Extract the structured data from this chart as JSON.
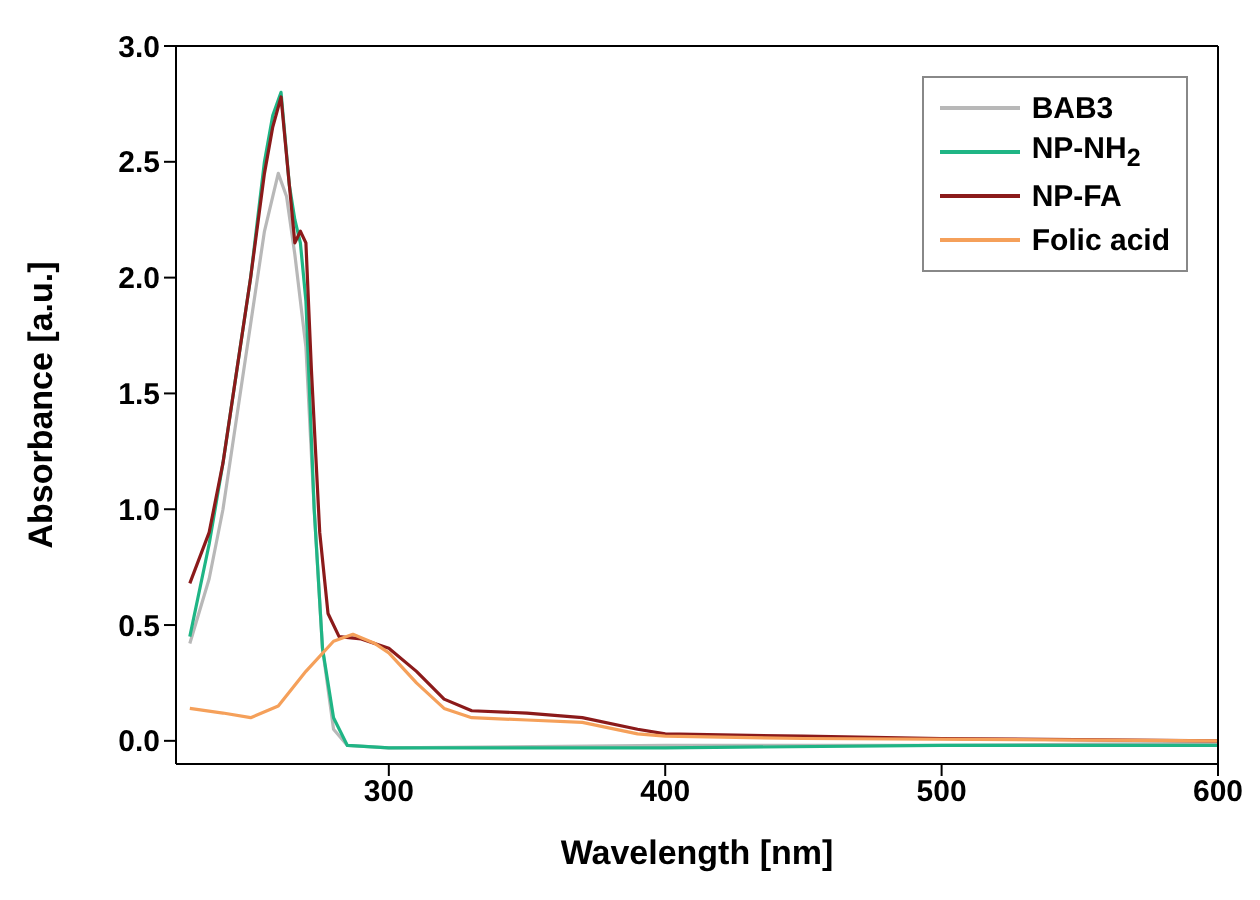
{
  "chart_data": {
    "type": "line",
    "xlabel": "Wavelength [nm]",
    "ylabel": "Absorbance [a.u.]",
    "xlim": [
      223,
      600
    ],
    "xticks": [
      300,
      400,
      500,
      600
    ],
    "ylim": [
      -0.1,
      3.0
    ],
    "yticks": [
      {
        "value": 0,
        "label": "0.0"
      },
      {
        "value": 0.5,
        "label": "0.5"
      },
      {
        "value": 1,
        "label": "1.0"
      },
      {
        "value": 1.5,
        "label": "1.5"
      },
      {
        "value": 2,
        "label": "2.0"
      },
      {
        "value": 2.5,
        "label": "2.5"
      },
      {
        "value": 3,
        "label": "3.0"
      }
    ],
    "legend": "top right",
    "marker": "none",
    "line_style": "solid",
    "series": [
      {
        "name": "BAB3",
        "color": "#b8b8b8",
        "x": [
          228,
          235,
          240,
          245,
          250,
          255,
          260,
          263,
          266,
          270,
          273,
          276,
          280,
          285,
          300,
          400,
          500,
          600
        ],
        "values": [
          0.42,
          0.7,
          1.0,
          1.4,
          1.8,
          2.2,
          2.45,
          2.35,
          2.1,
          1.7,
          1.0,
          0.4,
          0.05,
          -0.02,
          -0.03,
          -0.02,
          -0.02,
          -0.01
        ]
      },
      {
        "name": "NP-NH$_{2}$",
        "color": "#1fb585",
        "x": [
          228,
          235,
          240,
          245,
          250,
          255,
          258,
          261,
          264,
          266,
          268,
          270,
          273,
          276,
          280,
          285,
          300,
          400,
          500,
          600
        ],
        "values": [
          0.45,
          0.85,
          1.2,
          1.6,
          2.0,
          2.5,
          2.7,
          2.8,
          2.4,
          2.25,
          2.15,
          1.9,
          1.0,
          0.4,
          0.1,
          -0.02,
          -0.03,
          -0.03,
          -0.02,
          -0.02
        ]
      },
      {
        "name": "NP-FA",
        "color": "#8b1a1a",
        "x": [
          228,
          235,
          240,
          245,
          250,
          255,
          258,
          261,
          264,
          266,
          268,
          270,
          272,
          275,
          278,
          282,
          290,
          300,
          310,
          320,
          330,
          350,
          370,
          390,
          400,
          450,
          500,
          600
        ],
        "values": [
          0.68,
          0.9,
          1.2,
          1.6,
          2.0,
          2.45,
          2.65,
          2.78,
          2.4,
          2.15,
          2.2,
          2.15,
          1.6,
          0.9,
          0.55,
          0.45,
          0.44,
          0.4,
          0.3,
          0.18,
          0.13,
          0.12,
          0.1,
          0.05,
          0.03,
          0.02,
          0.01,
          0.0
        ]
      },
      {
        "name": "Folic acid",
        "color": "#f5a05a",
        "x": [
          228,
          240,
          250,
          260,
          270,
          280,
          287,
          295,
          300,
          310,
          320,
          330,
          350,
          370,
          390,
          400,
          450,
          600
        ],
        "values": [
          0.14,
          0.12,
          0.1,
          0.15,
          0.3,
          0.43,
          0.46,
          0.42,
          0.38,
          0.25,
          0.14,
          0.1,
          0.09,
          0.08,
          0.03,
          0.02,
          0.01,
          0.0
        ]
      }
    ]
  }
}
